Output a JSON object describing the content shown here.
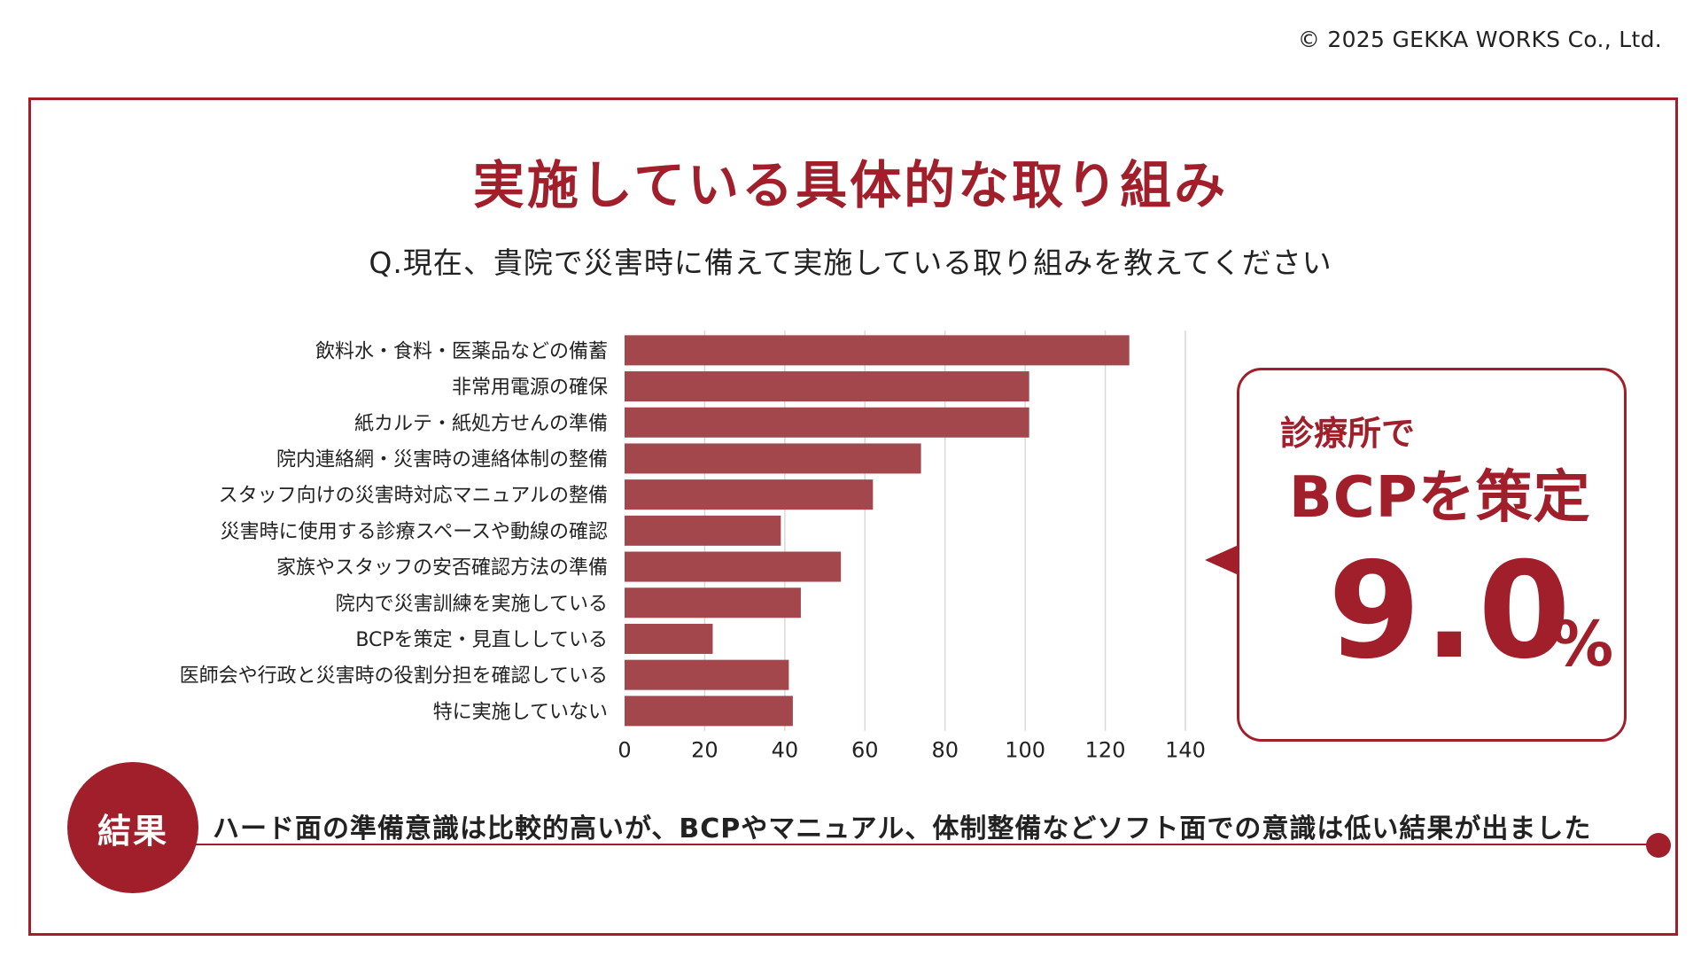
{
  "copyright": "© 2025 GEKKA WORKS Co., Ltd.",
  "title": "実施している具体的な取り組み",
  "subtitle": "Q.現在、貴院で災害時に備えて実施している取り組みを教えてください",
  "colors": {
    "accent": "#a11f2b",
    "bar": "#a3474d",
    "grid": "#d9d9d9"
  },
  "chart_data": {
    "type": "bar",
    "orientation": "horizontal",
    "categories": [
      "飲料水・食料・医薬品などの備蓄",
      "非常用電源の確保",
      "紙カルテ・紙処方せんの準備",
      "院内連絡網・災害時の連絡体制の整備",
      "スタッフ向けの災害時対応マニュアルの整備",
      "災害時に使用する診療スペースや動線の確認",
      "家族やスタッフの安否確認方法の準備",
      "院内で災害訓練を実施している",
      "BCPを策定・見直ししている",
      "医師会や行政と災害時の役割分担を確認している",
      "特に実施していない"
    ],
    "values": [
      126,
      101,
      101,
      74,
      62,
      39,
      54,
      44,
      22,
      41,
      42
    ],
    "xlim": [
      0,
      140
    ],
    "xticks": [
      "0",
      "20",
      "40",
      "60",
      "80",
      "100",
      "120",
      "140"
    ],
    "grid": true
  },
  "callout": {
    "line1": "診療所で",
    "line2": "BCPを策定",
    "value": "9.0",
    "unit": "%"
  },
  "result": {
    "badge": "結果",
    "text": "ハード面の準備意識は比較的高いが、BCPやマニュアル、体制整備などソフト面での意識は低い結果が出ました"
  }
}
